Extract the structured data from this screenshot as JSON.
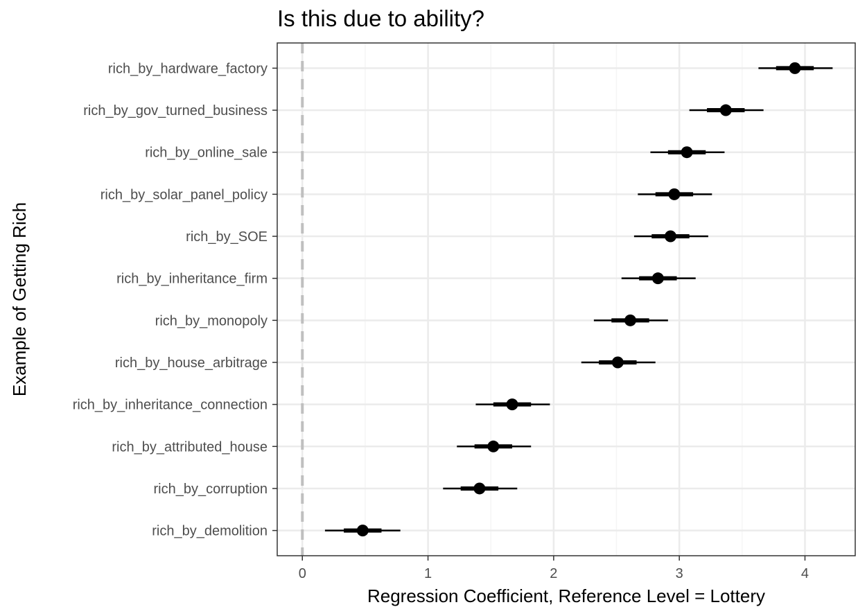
{
  "chart_data": {
    "type": "forest",
    "title": "Is this due to ability?",
    "xlabel": "Regression Coefficient, Reference Level = Lottery",
    "ylabel": "Example of Getting Rich",
    "xlim": [
      -0.2,
      4.4
    ],
    "xticks": [
      0,
      1,
      2,
      3,
      4
    ],
    "xtick_labels": [
      "0",
      "1",
      "2",
      "3",
      "4"
    ],
    "grid": true,
    "reference_line": {
      "x": 0,
      "style": "dashed",
      "color": "#bfbfbf"
    },
    "colors": {
      "point": "#000000",
      "panel_border": "#333333",
      "grid_major": "#ebebeb",
      "grid_minor": "#f5f5f5"
    },
    "categories": [
      "rich_by_hardware_factory",
      "rich_by_gov_turned_business",
      "rich_by_online_sale",
      "rich_by_solar_panel_policy",
      "rich_by_SOE",
      "rich_by_inheritance_firm",
      "rich_by_monopoly",
      "rich_by_house_arbitrage",
      "rich_by_inheritance_connection",
      "rich_by_attributed_house",
      "rich_by_corruption",
      "rich_by_demolition"
    ],
    "estimates": [
      3.92,
      3.37,
      3.06,
      2.96,
      2.93,
      2.83,
      2.61,
      2.51,
      1.67,
      1.52,
      1.41,
      0.48
    ],
    "inner_intervals": [
      [
        3.77,
        4.07
      ],
      [
        3.22,
        3.52
      ],
      [
        2.91,
        3.21
      ],
      [
        2.81,
        3.11
      ],
      [
        2.78,
        3.08
      ],
      [
        2.68,
        2.98
      ],
      [
        2.46,
        2.76
      ],
      [
        2.36,
        2.66
      ],
      [
        1.52,
        1.82
      ],
      [
        1.37,
        1.67
      ],
      [
        1.26,
        1.56
      ],
      [
        0.33,
        0.63
      ]
    ],
    "outer_intervals": [
      [
        3.63,
        4.22
      ],
      [
        3.08,
        3.67
      ],
      [
        2.77,
        3.36
      ],
      [
        2.67,
        3.26
      ],
      [
        2.64,
        3.23
      ],
      [
        2.54,
        3.13
      ],
      [
        2.32,
        2.91
      ],
      [
        2.22,
        2.81
      ],
      [
        1.38,
        1.97
      ],
      [
        1.23,
        1.82
      ],
      [
        1.12,
        1.71
      ],
      [
        0.18,
        0.78
      ]
    ]
  }
}
